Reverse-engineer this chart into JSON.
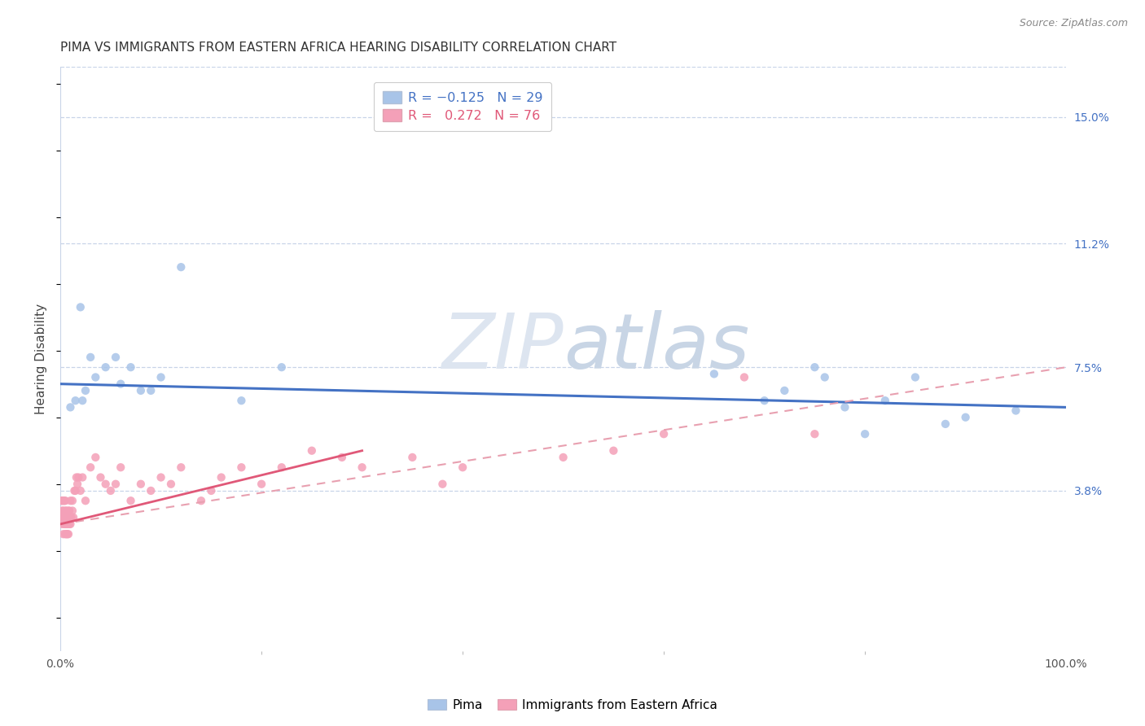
{
  "title": "PIMA VS IMMIGRANTS FROM EASTERN AFRICA HEARING DISABILITY CORRELATION CHART",
  "source": "Source: ZipAtlas.com",
  "ylabel": "Hearing Disability",
  "watermark": "ZIPatlas",
  "xlim": [
    0,
    100
  ],
  "ylim": [
    -1.0,
    16.5
  ],
  "ytick_vals": [
    3.8,
    7.5,
    11.2,
    15.0
  ],
  "ytick_labels": [
    "3.8%",
    "7.5%",
    "11.2%",
    "15.0%"
  ],
  "grid_yticks": [
    3.8,
    7.5,
    11.2,
    15.0
  ],
  "pima_color": "#a8c4e8",
  "immigrants_color": "#f4a0b8",
  "trend_pima_color": "#4472c4",
  "trend_immigrants_color": "#e05878",
  "trend_immigrants_dash_color": "#e8a0b0",
  "background_color": "#ffffff",
  "grid_color": "#c8d4e8",
  "title_fontsize": 11,
  "axis_label_fontsize": 11,
  "tick_fontsize": 10,
  "pima_x": [
    1.5,
    2.0,
    2.5,
    3.0,
    3.5,
    4.5,
    5.5,
    6.0,
    7.0,
    8.0,
    9.0,
    10.0,
    12.0,
    18.0,
    22.0,
    65.0,
    70.0,
    72.0,
    75.0,
    76.0,
    78.0,
    80.0,
    82.0,
    85.0,
    88.0,
    90.0,
    1.0,
    2.2,
    95.0
  ],
  "pima_y": [
    6.5,
    9.3,
    6.8,
    7.8,
    7.2,
    7.5,
    7.8,
    7.0,
    7.5,
    6.8,
    6.8,
    7.2,
    10.5,
    6.5,
    7.5,
    7.3,
    6.5,
    6.8,
    7.5,
    7.2,
    6.3,
    5.5,
    6.5,
    7.2,
    5.8,
    6.0,
    6.3,
    6.5,
    6.2
  ],
  "immigrants_x": [
    0.1,
    0.1,
    0.2,
    0.2,
    0.2,
    0.3,
    0.3,
    0.3,
    0.3,
    0.4,
    0.4,
    0.4,
    0.5,
    0.5,
    0.5,
    0.5,
    0.5,
    0.6,
    0.6,
    0.6,
    0.6,
    0.7,
    0.7,
    0.7,
    0.8,
    0.8,
    0.8,
    0.8,
    0.9,
    0.9,
    0.9,
    1.0,
    1.0,
    1.0,
    1.1,
    1.2,
    1.2,
    1.3,
    1.4,
    1.5,
    1.6,
    1.7,
    1.8,
    2.0,
    2.2,
    2.5,
    3.0,
    3.5,
    4.0,
    4.5,
    5.0,
    5.5,
    6.0,
    7.0,
    8.0,
    9.0,
    10.0,
    11.0,
    12.0,
    14.0,
    15.0,
    16.0,
    18.0,
    20.0,
    22.0,
    25.0,
    28.0,
    30.0,
    35.0,
    38.0,
    40.0,
    50.0,
    55.0,
    60.0,
    68.0,
    75.0
  ],
  "immigrants_y": [
    3.0,
    3.5,
    2.8,
    3.2,
    3.5,
    2.5,
    3.0,
    3.2,
    3.5,
    2.8,
    3.0,
    3.5,
    2.5,
    2.8,
    3.0,
    3.2,
    3.5,
    2.5,
    2.8,
    3.0,
    3.2,
    2.5,
    2.8,
    3.0,
    2.5,
    2.8,
    3.0,
    3.2,
    2.8,
    3.0,
    3.2,
    2.8,
    3.0,
    3.5,
    3.0,
    3.2,
    3.5,
    3.0,
    3.8,
    3.8,
    4.2,
    4.0,
    4.2,
    3.8,
    4.2,
    3.5,
    4.5,
    4.8,
    4.2,
    4.0,
    3.8,
    4.0,
    4.5,
    3.5,
    4.0,
    3.8,
    4.2,
    4.0,
    4.5,
    3.5,
    3.8,
    4.2,
    4.5,
    4.0,
    4.5,
    5.0,
    4.8,
    4.5,
    4.8,
    4.0,
    4.5,
    4.8,
    5.0,
    5.5,
    7.2,
    5.5
  ],
  "pima_trend_x0": 0,
  "pima_trend_y0": 7.0,
  "pima_trend_x1": 100,
  "pima_trend_y1": 6.3,
  "imm_solid_x0": 0,
  "imm_solid_y0": 2.8,
  "imm_solid_x1": 30,
  "imm_solid_y1": 5.0,
  "imm_dash_x0": 0,
  "imm_dash_y0": 2.8,
  "imm_dash_x1": 100,
  "imm_dash_y1": 7.5
}
